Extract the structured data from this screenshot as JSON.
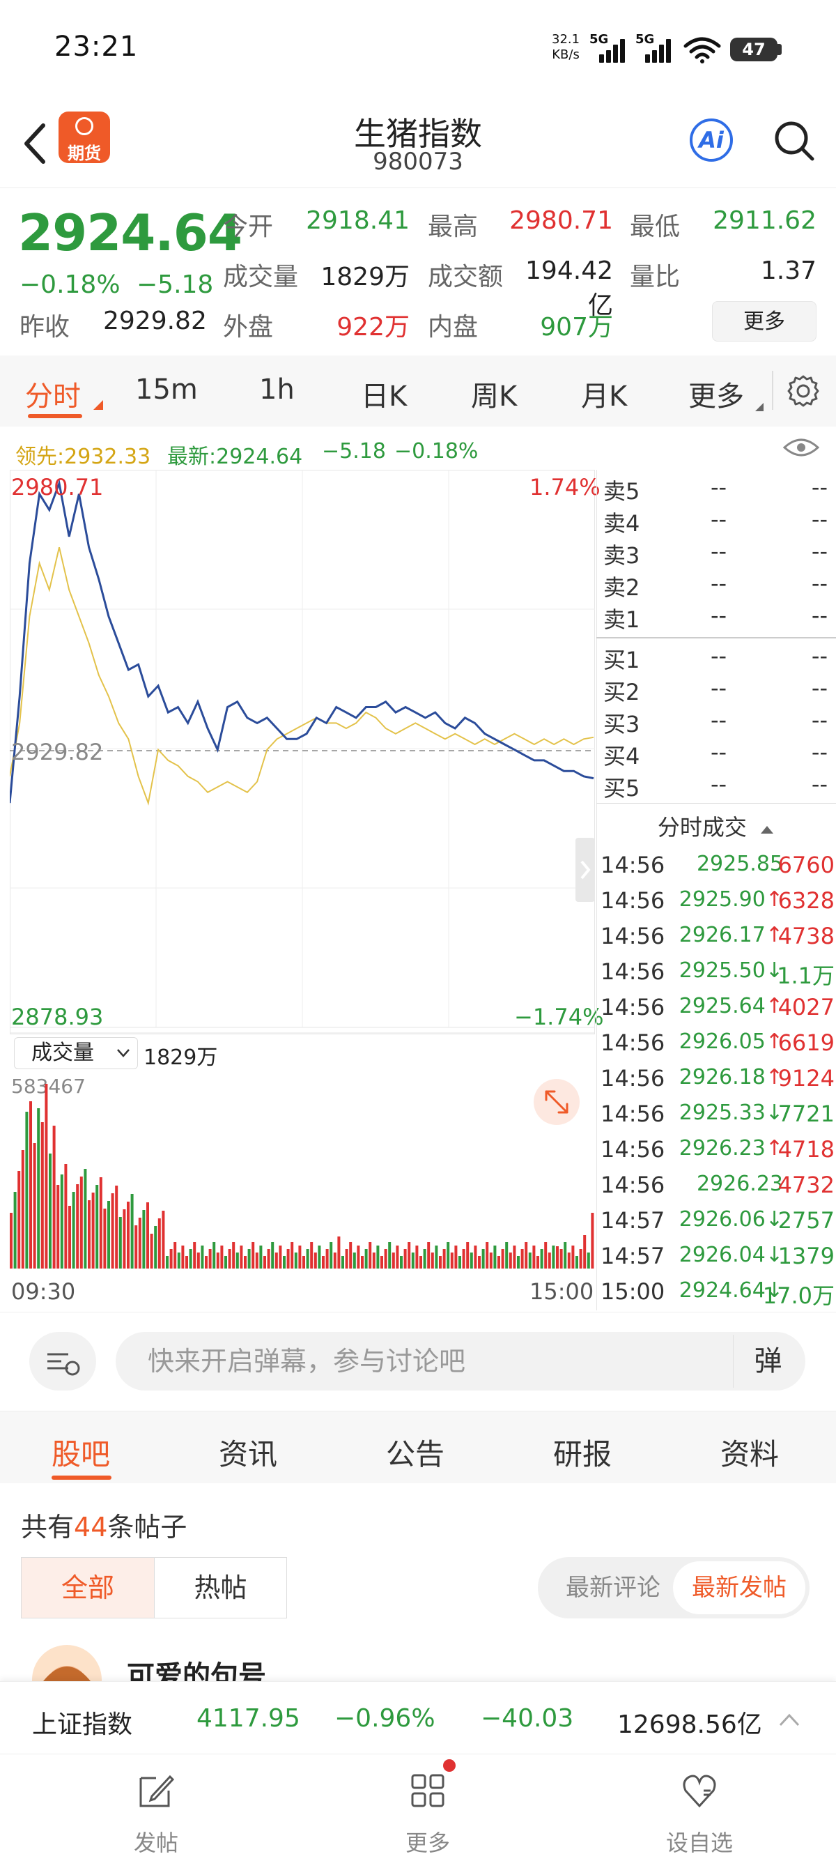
{
  "status_bar": {
    "time": "23:21",
    "speed_value": "32.1",
    "speed_unit": "KB/s",
    "network1": "5G",
    "network2": "5G",
    "battery": "47"
  },
  "header": {
    "logo_text": "期货",
    "title": "生猪指数",
    "code": "980073",
    "ai_label": "Ai"
  },
  "quote": {
    "price": "2924.64",
    "change_pct": "−0.18%",
    "change": "−5.18",
    "prev_close_label": "昨收",
    "prev_close": "2929.82",
    "open_label": "今开",
    "open": "2918.41",
    "high_label": "最高",
    "high": "2980.71",
    "low_label": "最低",
    "low": "2911.62",
    "volume_label": "成交量",
    "volume": "1829万",
    "amount_label": "成交额",
    "amount": "194.42亿",
    "ratio_label": "量比",
    "ratio": "1.37",
    "outer_label": "外盘",
    "outer": "922万",
    "inner_label": "内盘",
    "inner": "907万",
    "more_label": "更多"
  },
  "chart_tabs": [
    "分时",
    "15m",
    "1h",
    "日K",
    "周K",
    "月K",
    "更多"
  ],
  "legend": {
    "lead": "领先:2932.33",
    "latest": "最新:2924.64",
    "change": "−5.18",
    "pct": "−0.18%"
  },
  "chart_axis": {
    "top_price": "2980.71",
    "mid_price": "2929.82",
    "bottom_price": "2878.93",
    "top_pct": "1.74%",
    "bottom_pct": "−1.74%",
    "vol_selector": "成交量",
    "vol_total": "1829万",
    "vol_max": "583467",
    "time_start": "09:30",
    "time_end": "15:00"
  },
  "chart_data": {
    "type": "line",
    "ylim": [
      2878.93,
      2980.71
    ],
    "reference": 2929.82,
    "series": [
      {
        "color": "#2b4c9a",
        "values": [
          2920,
          2940,
          2965,
          2978,
          2975,
          2980,
          2970,
          2978,
          2968,
          2962,
          2955,
          2950,
          2945,
          2946,
          2940,
          2942,
          2937,
          2938,
          2935,
          2939,
          2934,
          2930,
          2938,
          2939,
          2936,
          2935,
          2936,
          2934,
          2932,
          2932,
          2933,
          2936,
          2935,
          2938,
          2937,
          2936,
          2938,
          2938,
          2939,
          2937,
          2938,
          2937,
          2936,
          2937,
          2935,
          2934,
          2936,
          2935,
          2933,
          2932,
          2931,
          2930,
          2929,
          2928,
          2928,
          2927,
          2926,
          2926,
          2925,
          2924.64
        ]
      },
      {
        "color": "#e3c24a",
        "values": [
          2925,
          2935,
          2955,
          2965,
          2960,
          2968,
          2960,
          2955,
          2950,
          2944,
          2940,
          2935,
          2932,
          2925,
          2920,
          2930,
          2928,
          2927,
          2925,
          2924,
          2922,
          2923,
          2924,
          2923,
          2922,
          2924,
          2930,
          2932,
          2933,
          2934,
          2935,
          2936,
          2935,
          2935,
          2934,
          2935,
          2937,
          2936,
          2934,
          2933,
          2934,
          2935,
          2934,
          2933,
          2932,
          2933,
          2932,
          2931,
          2932,
          2931,
          2932,
          2933,
          2932,
          2931,
          2932,
          2931,
          2932,
          2931,
          2932,
          2932.33
        ]
      }
    ]
  },
  "order_book": {
    "asks": [
      {
        "label": "卖5",
        "price": "--",
        "vol": "--"
      },
      {
        "label": "卖4",
        "price": "--",
        "vol": "--"
      },
      {
        "label": "卖3",
        "price": "--",
        "vol": "--"
      },
      {
        "label": "卖2",
        "price": "--",
        "vol": "--"
      },
      {
        "label": "卖1",
        "price": "--",
        "vol": "--"
      }
    ],
    "bids": [
      {
        "label": "买1",
        "price": "--",
        "vol": "--"
      },
      {
        "label": "买2",
        "price": "--",
        "vol": "--"
      },
      {
        "label": "买3",
        "price": "--",
        "vol": "--"
      },
      {
        "label": "买4",
        "price": "--",
        "vol": "--"
      },
      {
        "label": "买5",
        "price": "--",
        "vol": "--"
      }
    ],
    "ticks_title": "分时成交",
    "ticks": [
      {
        "time": "14:56",
        "price": "2925.85",
        "arrow": "",
        "vol": "6760",
        "color": "#e03131"
      },
      {
        "time": "14:56",
        "price": "2925.90",
        "arrow": "↑",
        "vol": "6328",
        "color": "#e03131"
      },
      {
        "time": "14:56",
        "price": "2926.17",
        "arrow": "↑",
        "vol": "4738",
        "color": "#e03131"
      },
      {
        "time": "14:56",
        "price": "2925.50",
        "arrow": "↓",
        "vol": "1.1万",
        "color": "#2e9a3e"
      },
      {
        "time": "14:56",
        "price": "2925.64",
        "arrow": "↑",
        "vol": "4027",
        "color": "#e03131"
      },
      {
        "time": "14:56",
        "price": "2926.05",
        "arrow": "↑",
        "vol": "6619",
        "color": "#e03131"
      },
      {
        "time": "14:56",
        "price": "2926.18",
        "arrow": "↑",
        "vol": "9124",
        "color": "#e03131"
      },
      {
        "time": "14:56",
        "price": "2925.33",
        "arrow": "↓",
        "vol": "7721",
        "color": "#2e9a3e"
      },
      {
        "time": "14:56",
        "price": "2926.23",
        "arrow": "↑",
        "vol": "4718",
        "color": "#e03131"
      },
      {
        "time": "14:56",
        "price": "2926.23",
        "arrow": "",
        "vol": "4732",
        "color": "#e03131"
      },
      {
        "time": "14:57",
        "price": "2926.06",
        "arrow": "↓",
        "vol": "2757",
        "color": "#2e9a3e"
      },
      {
        "time": "14:57",
        "price": "2926.04",
        "arrow": "↓",
        "vol": "1379",
        "color": "#2e9a3e"
      },
      {
        "time": "15:00",
        "price": "2924.64",
        "arrow": "↓",
        "vol": "17.0万",
        "color": "#2e9a3e"
      }
    ]
  },
  "comment_bar": {
    "placeholder": "快来开启弹幕，参与讨论吧",
    "danmu_button": "弹"
  },
  "content_tabs": [
    "股吧",
    "资讯",
    "公告",
    "研报",
    "资料"
  ],
  "posts": {
    "count_prefix": "共有",
    "count": "44",
    "count_suffix": "条帖子",
    "filter_all": "全部",
    "filter_hot": "热帖",
    "sort_comment": "最新评论",
    "sort_post": "最新发帖",
    "first_user": "可爱的句号"
  },
  "ticker": {
    "name": "上证指数",
    "price": "4117.95",
    "pct": "−0.96%",
    "change": "−40.03",
    "amount": "12698.56亿"
  },
  "bottom_nav": {
    "post": "发帖",
    "more": "更多",
    "watch": "设自选"
  }
}
